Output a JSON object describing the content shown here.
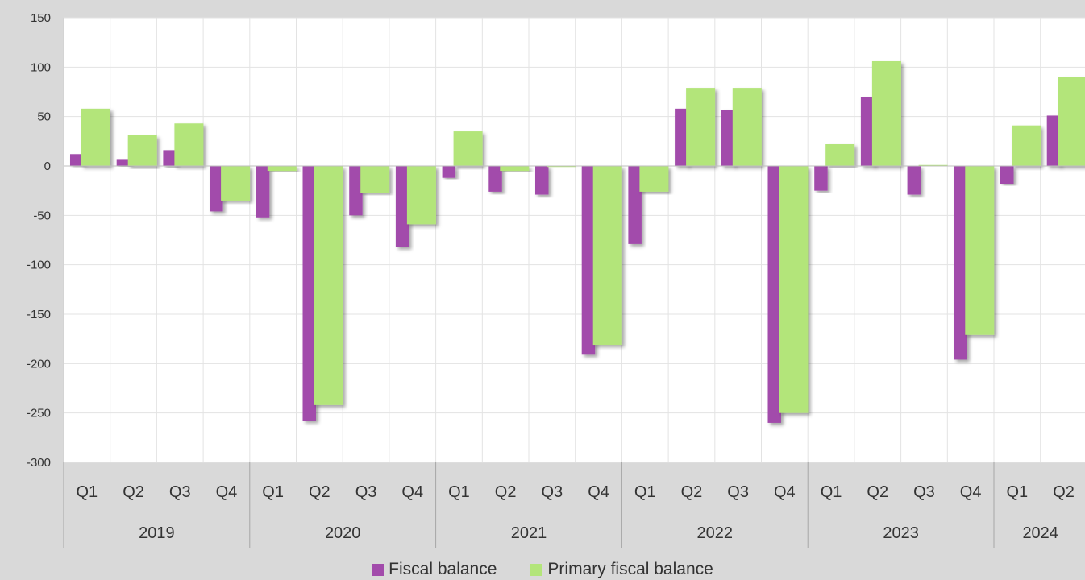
{
  "chart_data": {
    "type": "bar",
    "title": "",
    "xlabel": "",
    "ylabel": "",
    "ylim": [
      -300,
      150
    ],
    "yticks": [
      150,
      100,
      50,
      0,
      -50,
      -100,
      -150,
      -200,
      -250,
      -300
    ],
    "grid": true,
    "legend_position": "bottom",
    "categories": [
      "Q1",
      "Q2",
      "Q3",
      "Q4",
      "Q1",
      "Q2",
      "Q3",
      "Q4",
      "Q1",
      "Q2",
      "Q3",
      "Q4",
      "Q1",
      "Q2",
      "Q3",
      "Q4",
      "Q1",
      "Q2",
      "Q3",
      "Q4",
      "Q1",
      "Q2"
    ],
    "year_groups": [
      {
        "label": "2019",
        "count": 4
      },
      {
        "label": "2020",
        "count": 4
      },
      {
        "label": "2021",
        "count": 4
      },
      {
        "label": "2022",
        "count": 4
      },
      {
        "label": "2023",
        "count": 4
      },
      {
        "label": "2024",
        "count": 2
      }
    ],
    "series": [
      {
        "name": "Fiscal balance",
        "color": "#a24bab",
        "values": [
          12,
          7,
          16,
          -46,
          -52,
          -258,
          -50,
          -82,
          -12,
          -26,
          -29,
          -191,
          -79,
          58,
          57,
          -260,
          -25,
          70,
          -29,
          -196,
          -18,
          51
        ]
      },
      {
        "name": "Primary fiscal balance",
        "color": "#b3e57a",
        "values": [
          58,
          31,
          43,
          -35,
          -5,
          -242,
          -27,
          -59,
          35,
          -5,
          -1,
          -181,
          -26,
          79,
          79,
          -250,
          22,
          106,
          1,
          -171,
          41,
          90
        ]
      }
    ]
  }
}
